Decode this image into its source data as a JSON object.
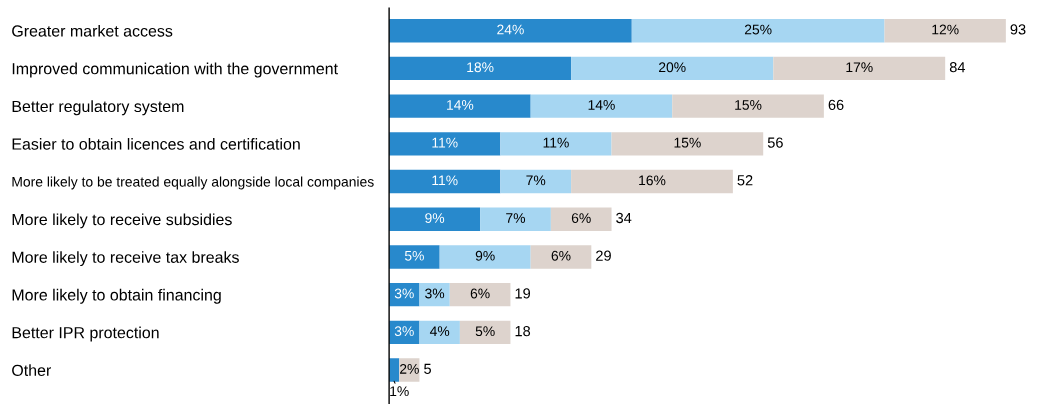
{
  "chart_data": {
    "type": "bar",
    "orientation": "horizontal",
    "stacked": true,
    "categories": [
      "Greater market access",
      "Improved communication with the government",
      "Better regulatory system",
      "Easier to obtain licences and certification",
      "More likely to be treated equally alongside local companies",
      "More likely to receive subsidies",
      "More likely to receive tax breaks",
      "More likely to obtain financing",
      "Better IPR protection",
      "Other"
    ],
    "series": [
      {
        "color": "#2889cc",
        "values": [
          24,
          18,
          14,
          11,
          11,
          9,
          5,
          3,
          3,
          1
        ],
        "value_labels": [
          "24%",
          "18%",
          "14%",
          "11%",
          "11%",
          "9%",
          "5%",
          "3%",
          "3%",
          "1%"
        ]
      },
      {
        "color": "#a6d6f2",
        "values": [
          25,
          20,
          14,
          11,
          7,
          7,
          9,
          3,
          4,
          null
        ],
        "value_labels": [
          "25%",
          "20%",
          "14%",
          "11%",
          "7%",
          "7%",
          "9%",
          "3%",
          "4%",
          null
        ]
      },
      {
        "color": "#ddd3cd",
        "values": [
          12,
          17,
          15,
          15,
          16,
          6,
          6,
          6,
          5,
          2
        ],
        "value_labels": [
          "12%",
          "17%",
          "15%",
          "15%",
          "16%",
          "6%",
          "6%",
          "6%",
          "5%",
          "2%"
        ]
      }
    ],
    "annotations": [
      "93",
      "84",
      "66",
      "56",
      "52",
      "34",
      "29",
      "19",
      "18",
      "5"
    ],
    "legend": false,
    "grid": false
  }
}
